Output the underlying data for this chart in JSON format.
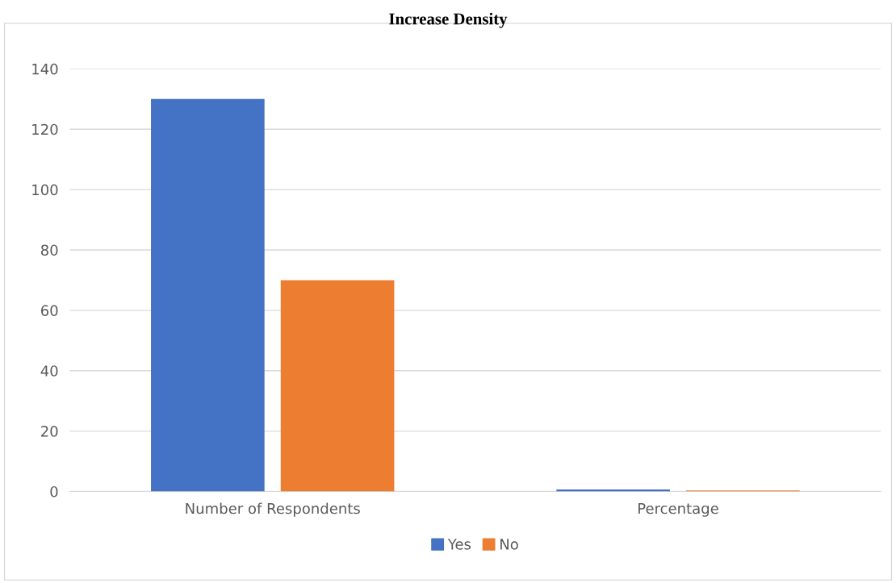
{
  "chart_data": {
    "type": "bar",
    "title": "Increase Density",
    "categories": [
      "Number of Respondents",
      "Percentage"
    ],
    "series": [
      {
        "name": "Yes",
        "color": "#4472c4",
        "values": [
          130,
          0.65
        ]
      },
      {
        "name": "No",
        "color": "#ed7d31",
        "values": [
          70,
          0.35
        ]
      }
    ],
    "ylim": [
      0,
      140
    ],
    "yticks": [
      0,
      20,
      40,
      60,
      80,
      100,
      120,
      140
    ],
    "grid": "y",
    "legend": "bottom"
  }
}
